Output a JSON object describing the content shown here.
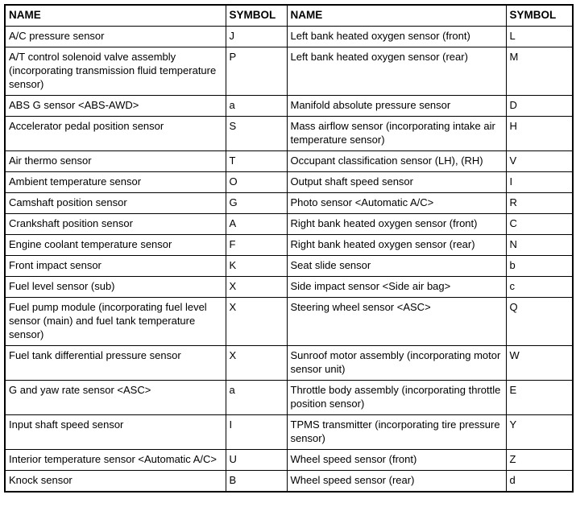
{
  "table": {
    "headers": [
      "NAME",
      "SYMBOL",
      "NAME",
      "SYMBOL"
    ],
    "rows": [
      [
        "A/C pressure sensor",
        "J",
        "Left bank heated oxygen sensor (front)",
        "L"
      ],
      [
        "A/T control solenoid valve assembly (incorporating transmission fluid temperature sensor)",
        "P",
        "Left bank heated oxygen sensor (rear)",
        "M"
      ],
      [
        "ABS G sensor <ABS-AWD>",
        "a",
        "Manifold absolute pressure sensor",
        "D"
      ],
      [
        "Accelerator pedal position sensor",
        "S",
        "Mass airflow sensor (incorporating intake air temperature sensor)",
        "H"
      ],
      [
        "Air thermo sensor",
        "T",
        "Occupant classification sensor (LH), (RH)",
        "V"
      ],
      [
        "Ambient temperature sensor",
        "O",
        "Output shaft speed sensor",
        "I"
      ],
      [
        "Camshaft position sensor",
        "G",
        "Photo sensor <Automatic A/C>",
        "R"
      ],
      [
        "Crankshaft position sensor",
        "A",
        "Right bank heated oxygen sensor (front)",
        "C"
      ],
      [
        "Engine coolant temperature sensor",
        "F",
        "Right bank heated oxygen sensor (rear)",
        "N"
      ],
      [
        "Front impact sensor",
        "K",
        "Seat slide sensor",
        "b"
      ],
      [
        "Fuel level sensor (sub)",
        "X",
        "Side impact sensor <Side air bag>",
        "c"
      ],
      [
        "Fuel pump module (incorporating fuel level sensor (main) and fuel tank temperature sensor)",
        "X",
        "Steering wheel sensor <ASC>",
        "Q"
      ],
      [
        "Fuel tank differential pressure sensor",
        "X",
        "Sunroof motor assembly (incorporating motor sensor unit)",
        "W"
      ],
      [
        "G and yaw rate sensor <ASC>",
        "a",
        "Throttle body assembly (incorporating throttle position sensor)",
        "E"
      ],
      [
        "Input shaft speed sensor",
        "I",
        "TPMS transmitter (incorporating tire pressure sensor)",
        "Y"
      ],
      [
        "Interior temperature sensor <Automatic A/C>",
        "U",
        "Wheel speed sensor (front)",
        "Z"
      ],
      [
        "Knock sensor",
        "B",
        "Wheel speed sensor (rear)",
        "d"
      ]
    ],
    "colors": {
      "border": "#000000",
      "background": "#ffffff",
      "text": "#000000"
    }
  }
}
